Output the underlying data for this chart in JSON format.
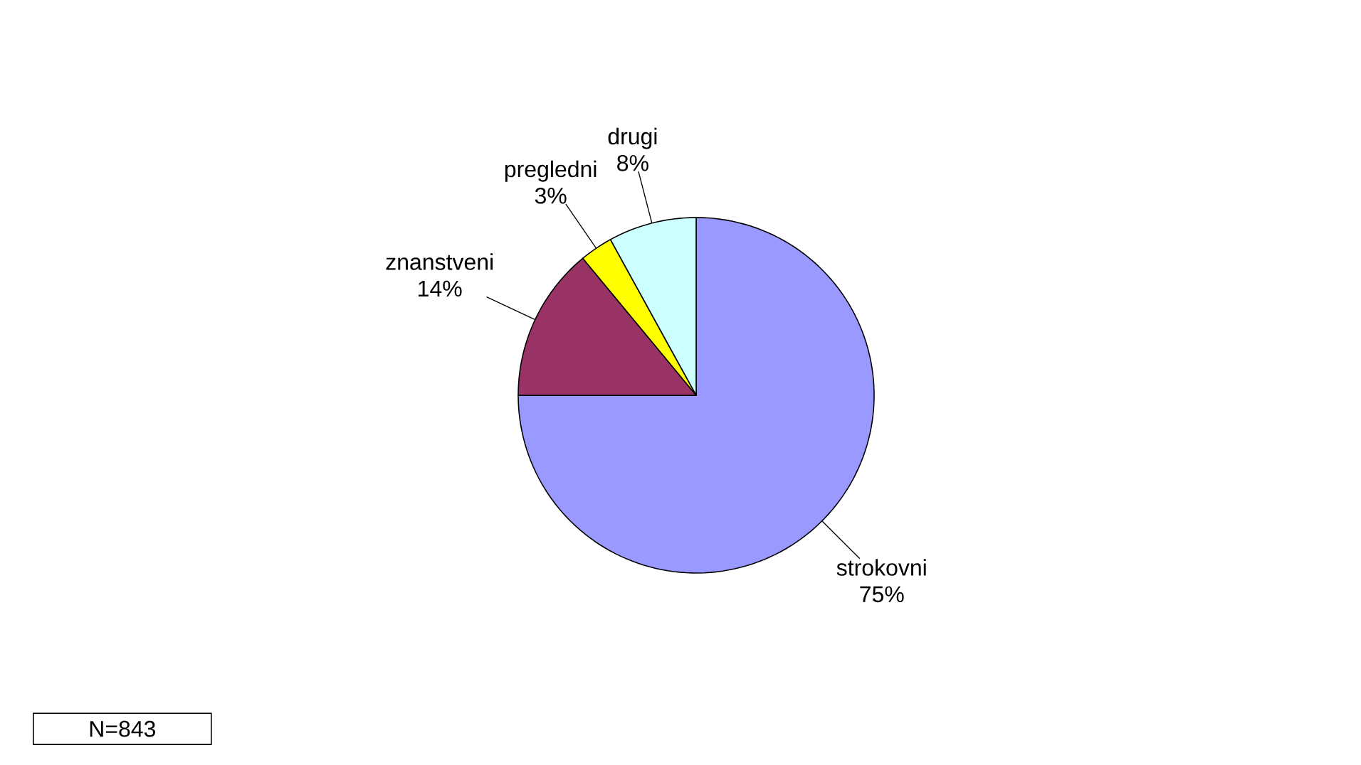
{
  "chart_data": {
    "type": "pie",
    "categories": [
      "strokovni",
      "znanstveni",
      "pregledni",
      "drugi"
    ],
    "values": [
      75,
      14,
      3,
      8
    ],
    "value_labels": [
      "75%",
      "14%",
      "3%",
      "8%"
    ],
    "colors": [
      "#9999ff",
      "#993366",
      "#ffff00",
      "#ccffff"
    ],
    "annotations": [
      "N=843"
    ]
  }
}
